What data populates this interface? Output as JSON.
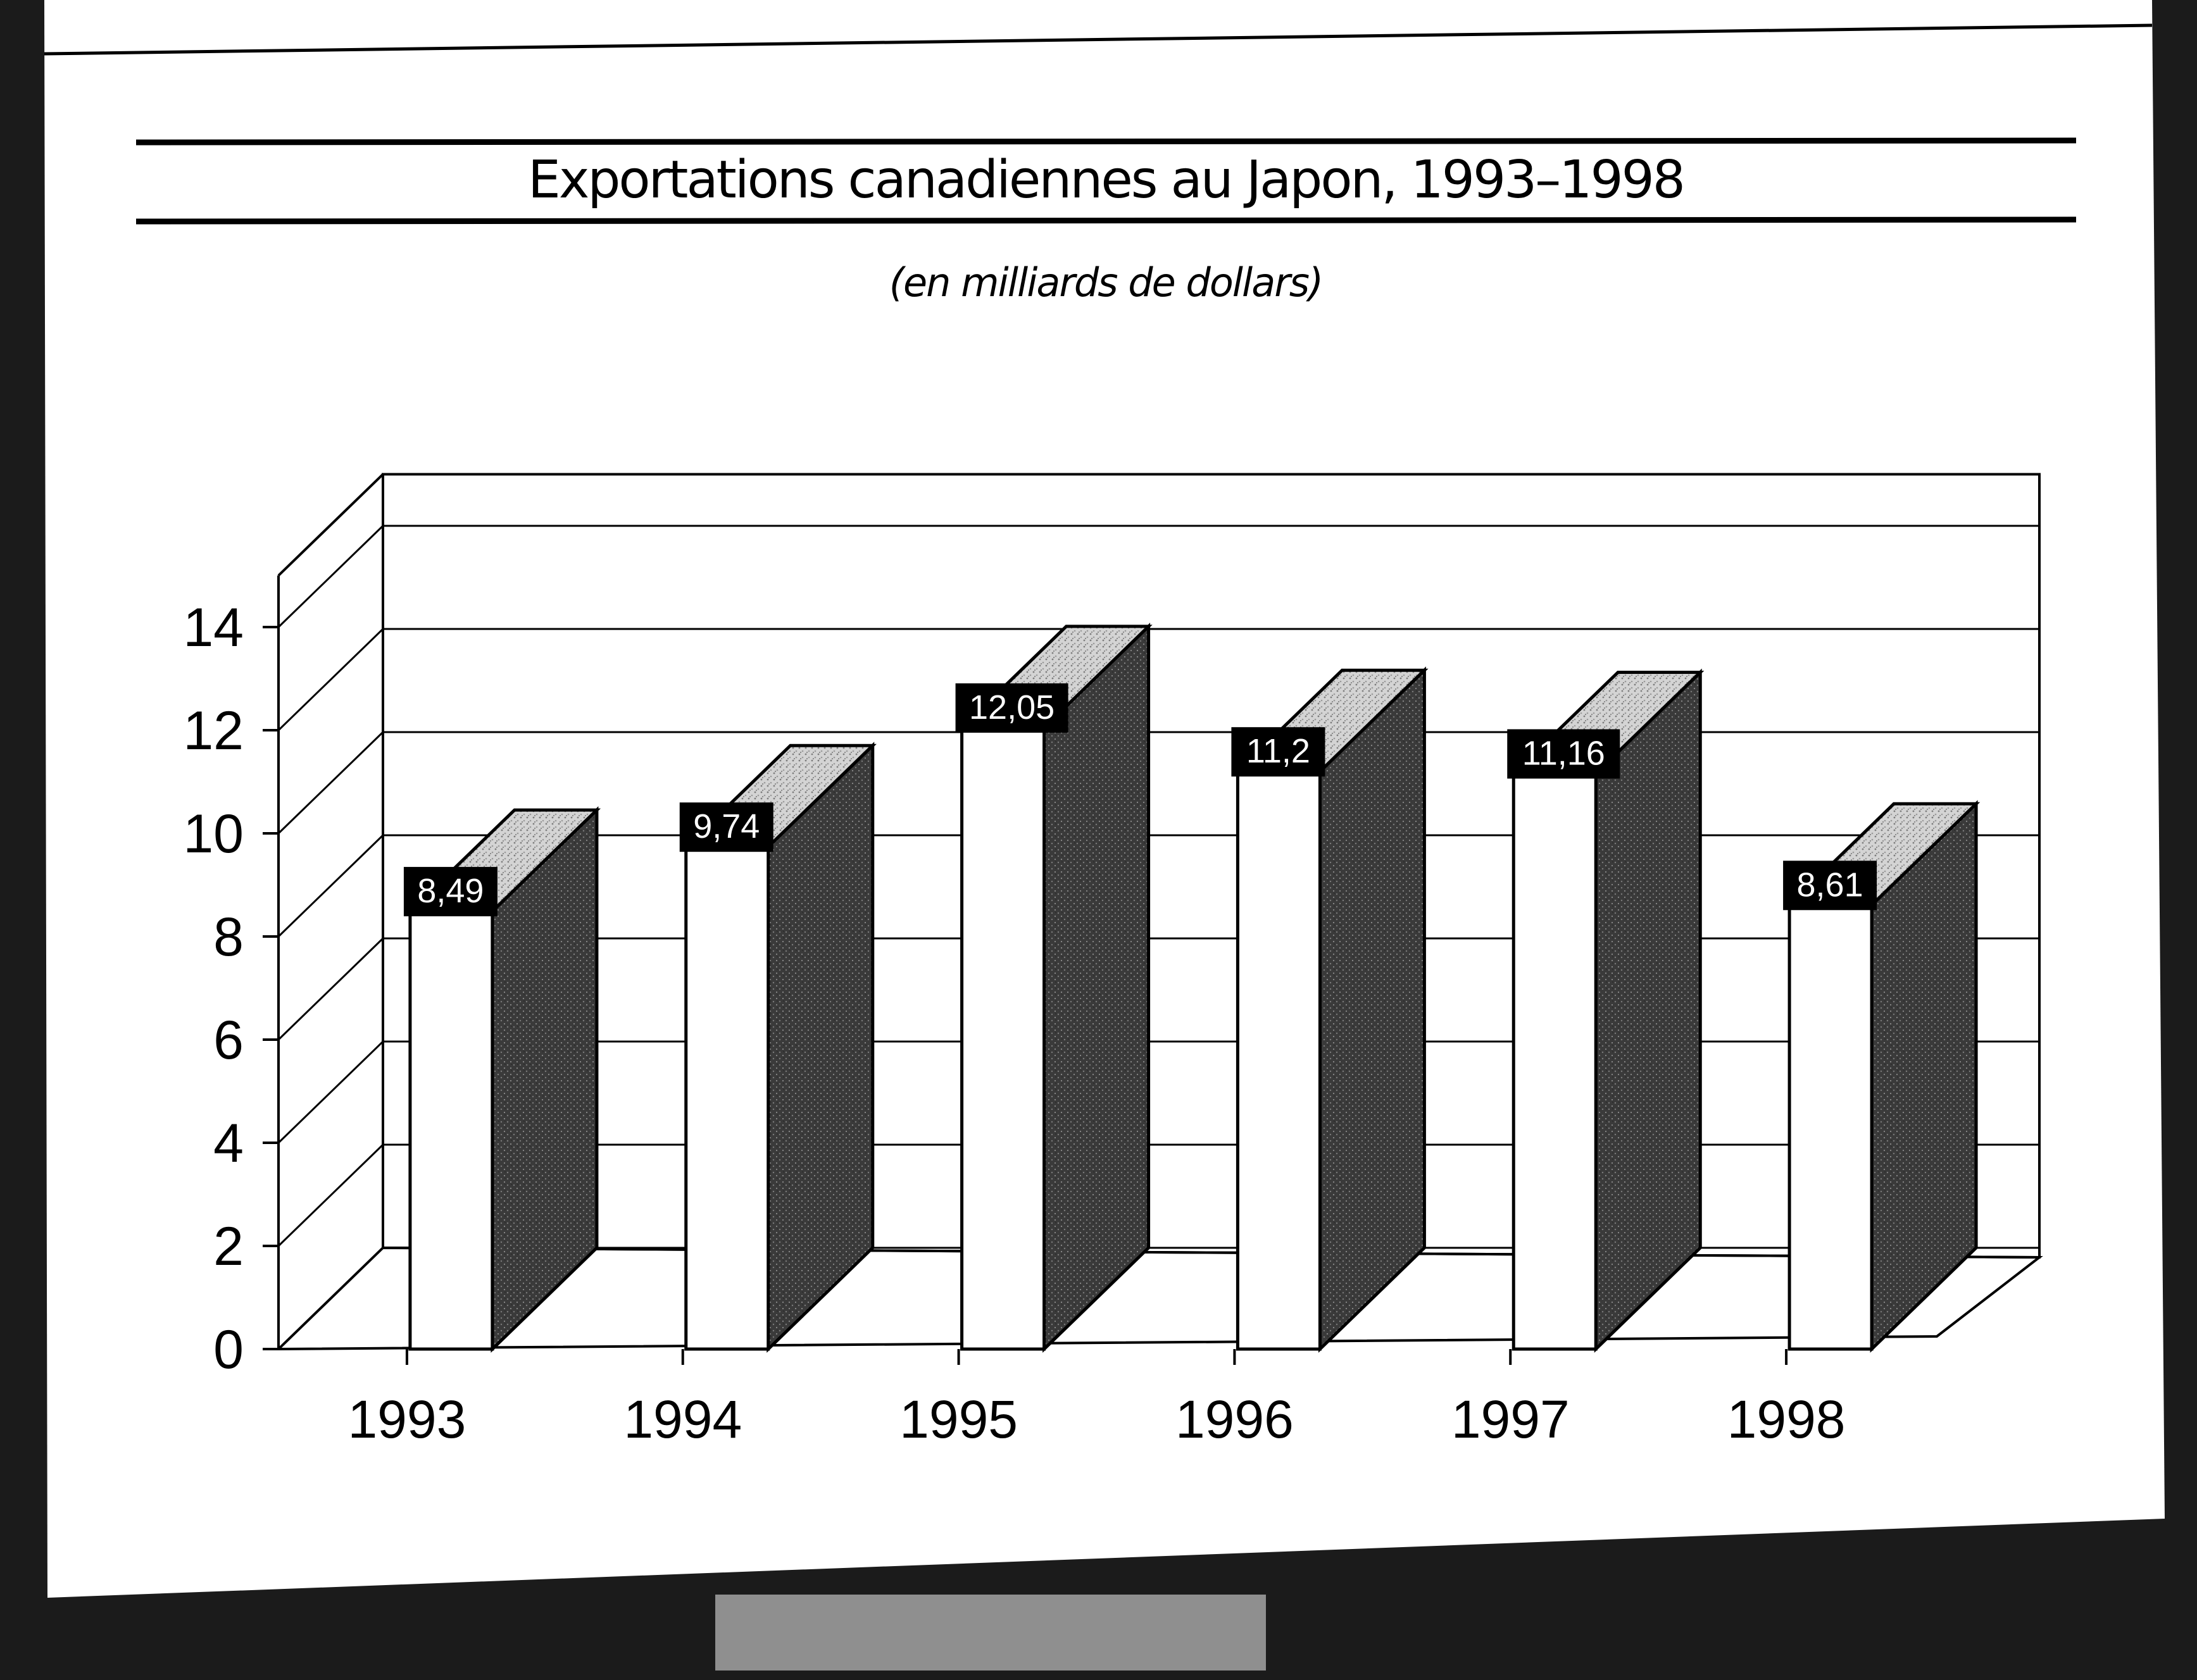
{
  "colors": {
    "background": "#1b1b1b",
    "paper": "#ffffff",
    "ink": "#000000",
    "bar_front": "#ffffff",
    "bar_side": "#3a3a3a",
    "bar_top": "#cfcfcf",
    "label_box": "#000000",
    "label_text": "#ffffff"
  },
  "chart_data": {
    "type": "bar",
    "title": "Exportations canadiennes au Japon, 1993–1998",
    "subtitle": "(en milliards de dollars)",
    "categories": [
      "1993",
      "1994",
      "1995",
      "1996",
      "1997",
      "1998"
    ],
    "values": [
      8.49,
      9.74,
      12.05,
      11.2,
      11.16,
      8.61
    ],
    "value_labels": [
      "8,49",
      "9,74",
      "12,05",
      "11,2",
      "11,16",
      "8,61"
    ],
    "y_ticks": [
      "0",
      "2",
      "4",
      "6",
      "8",
      "10",
      "12",
      "14"
    ],
    "ylim": [
      0,
      14
    ],
    "xlabel": "",
    "ylabel": "",
    "style": "3d-bar",
    "grid": true,
    "legend": "none"
  }
}
